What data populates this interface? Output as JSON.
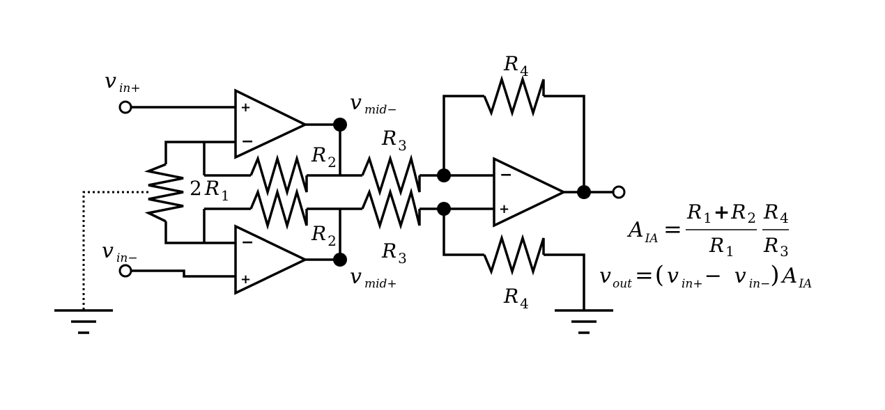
{
  "labels": {
    "vin_plus": {
      "v": "v",
      "sub": "in+"
    },
    "vin_minus": {
      "v": "v",
      "sub": "in−"
    },
    "vmid_minus": {
      "v": "v",
      "sub": "mid−"
    },
    "vmid_plus": {
      "v": "v",
      "sub": "mid+"
    },
    "r1_coef": "2",
    "r1": {
      "R": "R",
      "sub": "1"
    },
    "r2_top": {
      "R": "R",
      "sub": "2"
    },
    "r2_bot": {
      "R": "R",
      "sub": "2"
    },
    "r3_top": {
      "R": "R",
      "sub": "3"
    },
    "r3_bot": {
      "R": "R",
      "sub": "3"
    },
    "r4_top": {
      "R": "R",
      "sub": "4"
    },
    "r4_bot": {
      "R": "R",
      "sub": "4"
    }
  },
  "opamp_signs": {
    "plus": "+",
    "minus": "−"
  },
  "equations": {
    "gain": {
      "lhs": {
        "A": "A",
        "sub": "IA"
      },
      "eq": "=",
      "num1": {
        "R1": "R",
        "R1sub": "1",
        "plus": "+",
        "R2": "R",
        "R2sub": "2"
      },
      "den1": {
        "R": "R",
        "sub": "1"
      },
      "num2": {
        "R": "R",
        "sub": "4"
      },
      "den2": {
        "R": "R",
        "sub": "3"
      }
    },
    "vout": {
      "v": "v",
      "sub": "out",
      "eq": "=",
      "lparen": "(",
      "v1": "v",
      "v1sub": "in+",
      "minus": "−",
      "v2": "v",
      "v2sub": "in−",
      "rparen": ")",
      "A": "A",
      "Asub": "IA"
    }
  }
}
